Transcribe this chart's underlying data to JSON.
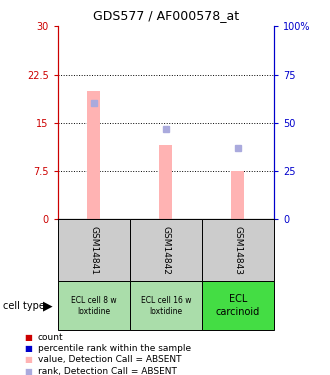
{
  "title": "GDS577 / AF000578_at",
  "samples": [
    "GSM14841",
    "GSM14842",
    "GSM14843"
  ],
  "bar_values": [
    20.0,
    11.5,
    7.5
  ],
  "bar_color": "#ffb3b3",
  "rank_dots": [
    60,
    47,
    37
  ],
  "rank_dot_color": "#aaaadd",
  "ylim_left": [
    0,
    30
  ],
  "ylim_right": [
    0,
    100
  ],
  "yticks_left": [
    0,
    7.5,
    15,
    22.5,
    30
  ],
  "ytick_labels_left": [
    "0",
    "7.5",
    "15",
    "22.5",
    "30"
  ],
  "yticks_right": [
    0,
    25,
    50,
    75,
    100
  ],
  "ytick_labels_right": [
    "0",
    "25",
    "50",
    "75",
    "100%"
  ],
  "dotted_lines": [
    7.5,
    15,
    22.5
  ],
  "cell_labels_line1": [
    "ECL cell 8 w",
    "ECL cell 16 w",
    "ECL"
  ],
  "cell_labels_line2": [
    "loxtidine",
    "loxtidine",
    "carcinoid"
  ],
  "cell_colors": [
    "#aaddaa",
    "#aaddaa",
    "#44dd44"
  ],
  "sample_bg_color": "#cccccc",
  "legend_items": [
    {
      "color": "#cc0000",
      "label": "count"
    },
    {
      "color": "#0000cc",
      "label": "percentile rank within the sample"
    },
    {
      "color": "#ffb3b3",
      "label": "value, Detection Call = ABSENT"
    },
    {
      "color": "#aaaadd",
      "label": "rank, Detection Call = ABSENT"
    }
  ],
  "left_axis_color": "#cc0000",
  "right_axis_color": "#0000cc",
  "bar_width": 0.18
}
